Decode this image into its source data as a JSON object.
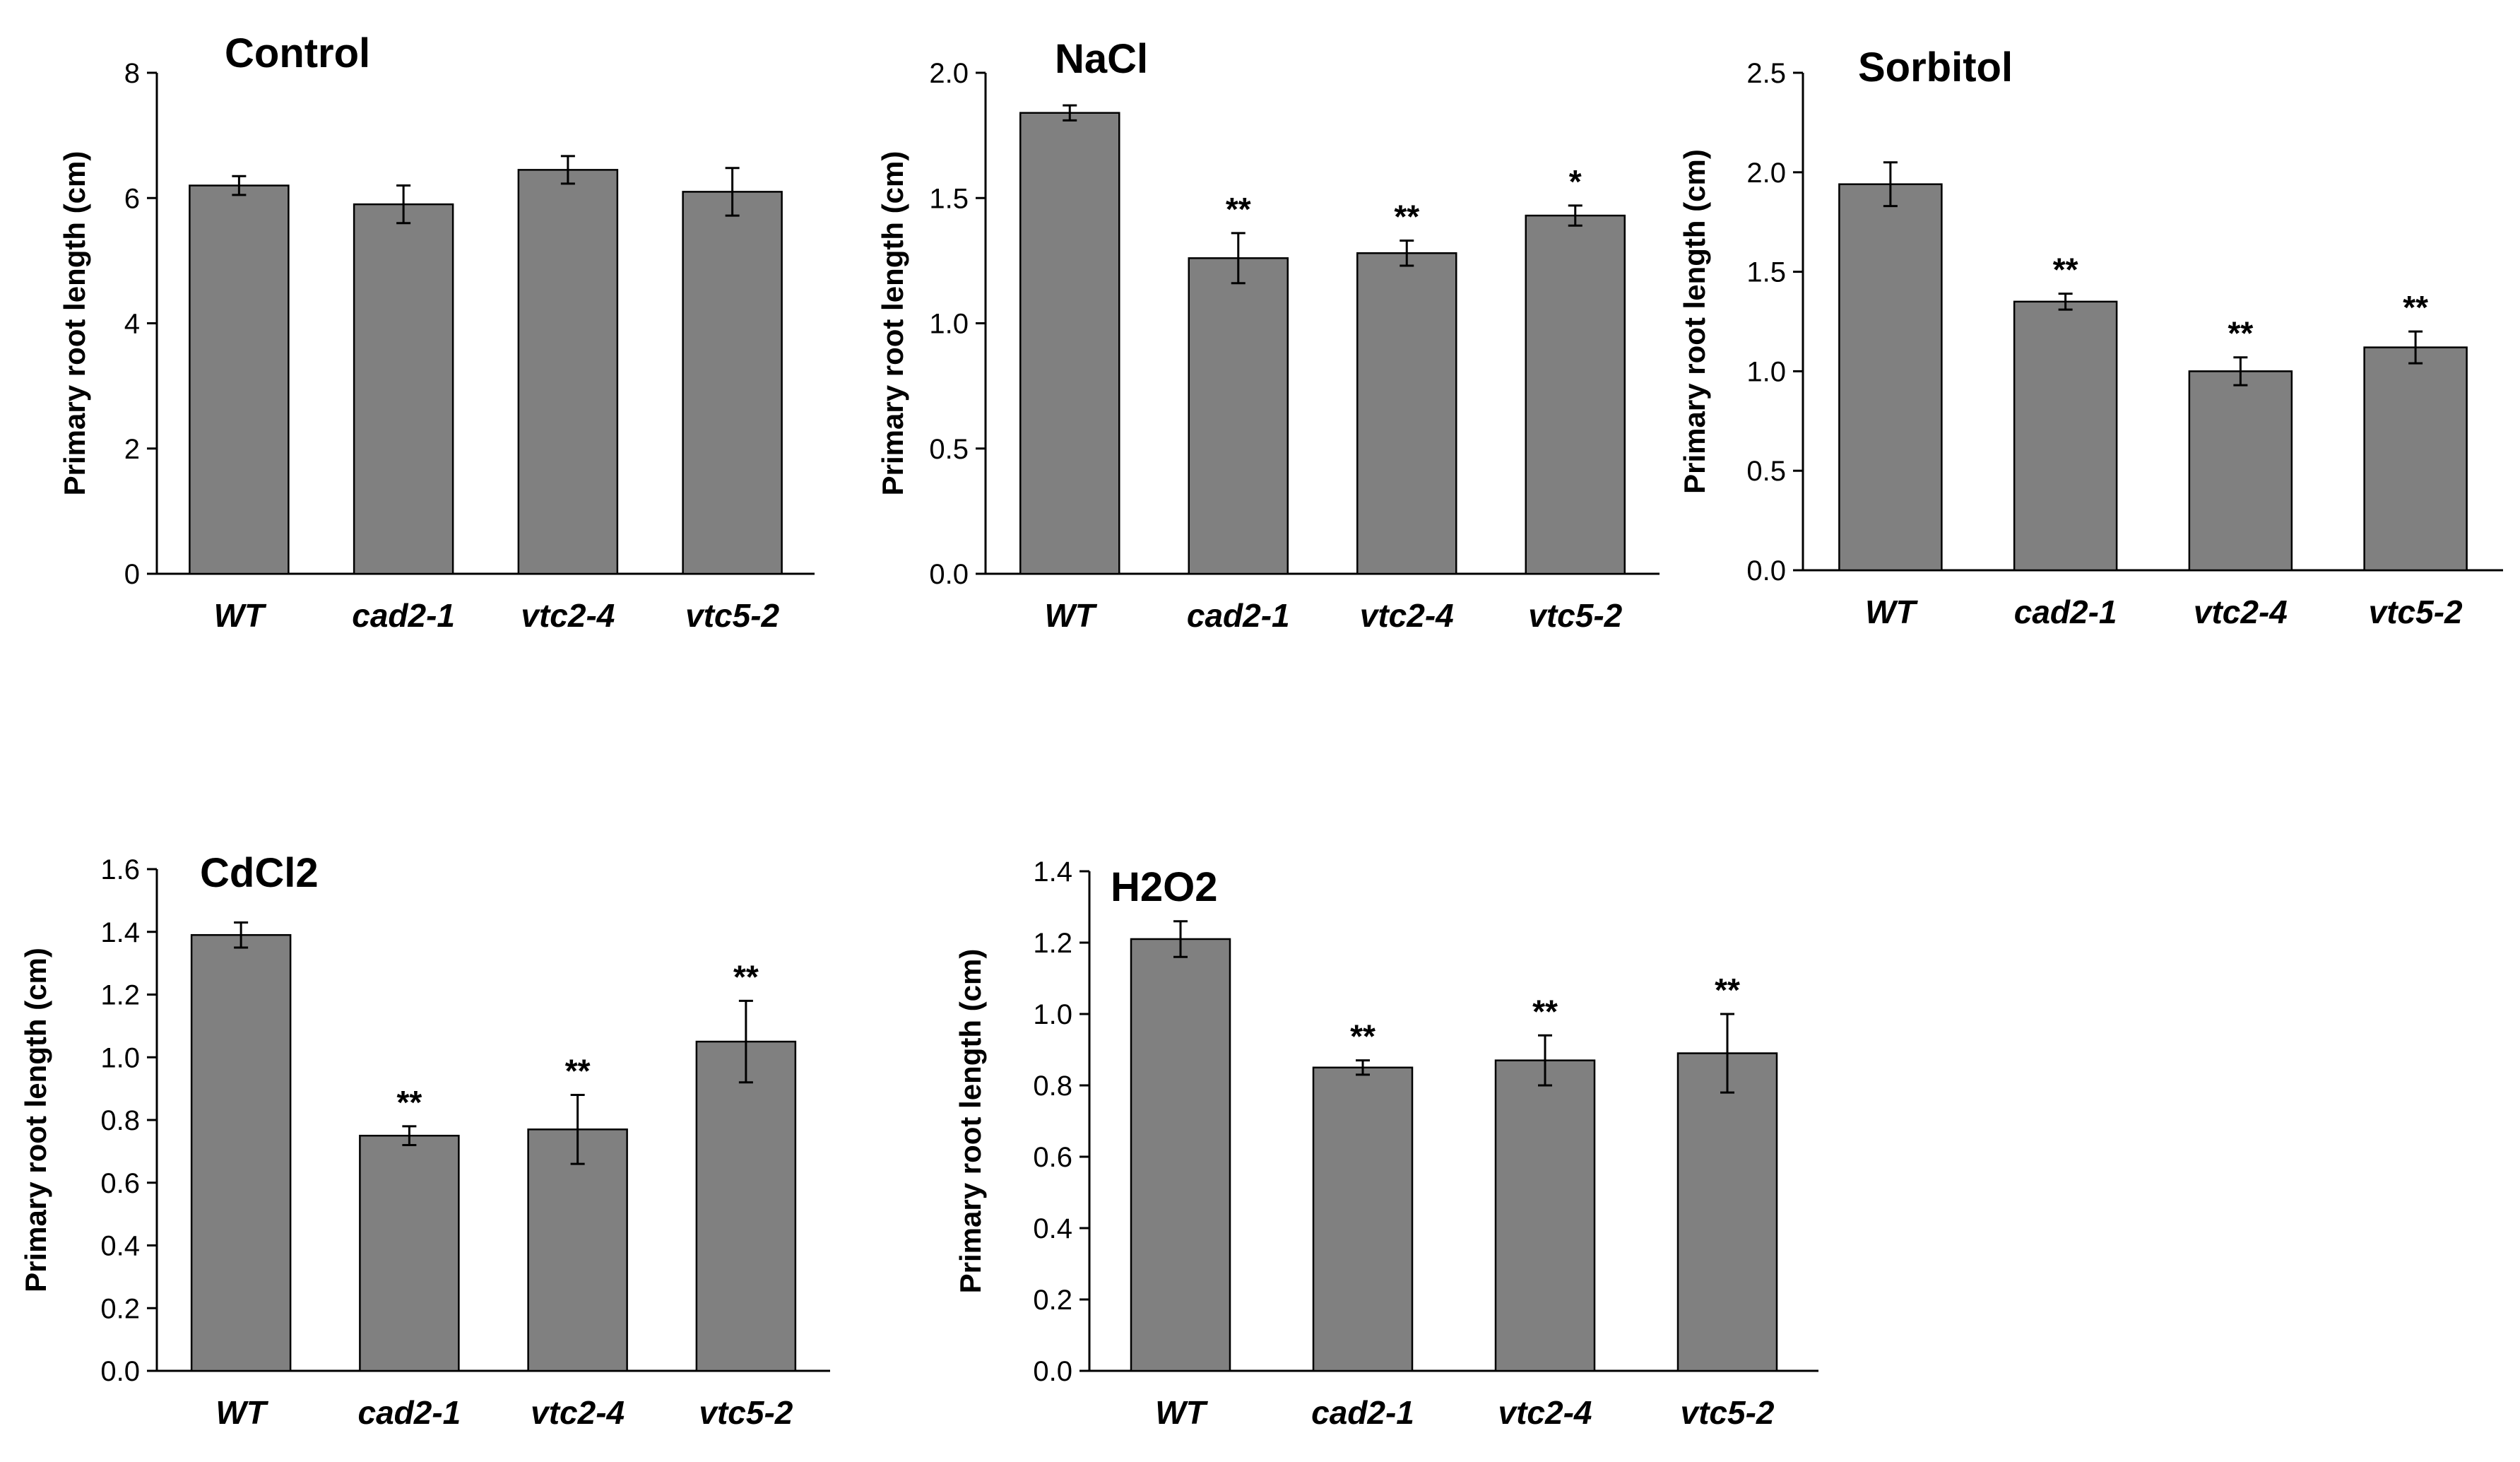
{
  "figure": {
    "bar_color": "#808080",
    "axis_color": "#000000"
  },
  "chart_data": [
    {
      "type": "bar",
      "title": "Control",
      "ylabel": "Primary root length (cm)",
      "xlabel": "",
      "categories": [
        "WT",
        "cad2-1",
        "vtc2-4",
        "vtc5-2"
      ],
      "values": [
        6.2,
        5.9,
        6.45,
        6.1
      ],
      "errors": [
        0.15,
        0.3,
        0.22,
        0.38
      ],
      "significance": [
        "",
        "",
        "",
        ""
      ],
      "ylim": [
        0,
        8
      ],
      "yticks": [
        0,
        2,
        4,
        6,
        8
      ],
      "ytick_labels": [
        "0",
        "2",
        "4",
        "6",
        "8"
      ]
    },
    {
      "type": "bar",
      "title": "NaCl",
      "ylabel": "Primary root length (cm)",
      "xlabel": "",
      "categories": [
        "WT",
        "cad2-1",
        "vtc2-4",
        "vtc5-2"
      ],
      "values": [
        1.84,
        1.26,
        1.28,
        1.43
      ],
      "errors": [
        0.03,
        0.1,
        0.05,
        0.04
      ],
      "significance": [
        "",
        "**",
        "**",
        "*"
      ],
      "ylim": [
        0,
        2.0
      ],
      "yticks": [
        0,
        0.5,
        1.0,
        1.5,
        2.0
      ],
      "ytick_labels": [
        "0.0",
        "0.5",
        "1.0",
        "1.5",
        "2.0"
      ]
    },
    {
      "type": "bar",
      "title": "Sorbitol",
      "ylabel": "Primary root length (cm)",
      "xlabel": "",
      "categories": [
        "WT",
        "cad2-1",
        "vtc2-4",
        "vtc5-2"
      ],
      "values": [
        1.94,
        1.35,
        1.0,
        1.12
      ],
      "errors": [
        0.11,
        0.04,
        0.07,
        0.08
      ],
      "significance": [
        "",
        "**",
        "**",
        "**"
      ],
      "ylim": [
        0,
        2.5
      ],
      "yticks": [
        0,
        0.5,
        1.0,
        1.5,
        2.0,
        2.5
      ],
      "ytick_labels": [
        "0.0",
        "0.5",
        "1.0",
        "1.5",
        "2.0",
        "2.5"
      ]
    },
    {
      "type": "bar",
      "title": "CdCl2",
      "ylabel": "Primary root length (cm)",
      "xlabel": "",
      "categories": [
        "WT",
        "cad2-1",
        "vtc2-4",
        "vtc5-2"
      ],
      "values": [
        1.39,
        0.75,
        0.77,
        1.05
      ],
      "errors": [
        0.04,
        0.03,
        0.11,
        0.13
      ],
      "significance": [
        "",
        "**",
        "**",
        "**"
      ],
      "ylim": [
        0,
        1.6
      ],
      "yticks": [
        0,
        0.2,
        0.4,
        0.6,
        0.8,
        1.0,
        1.2,
        1.4,
        1.6
      ],
      "ytick_labels": [
        "0.0",
        "0.2",
        "0.4",
        "0.6",
        "0.8",
        "1.0",
        "1.2",
        "1.4",
        "1.6"
      ]
    },
    {
      "type": "bar",
      "title": "H2O2",
      "ylabel": "Primary root length (cm)",
      "xlabel": "",
      "categories": [
        "WT",
        "cad2-1",
        "vtc2-4",
        "vtc5-2"
      ],
      "values": [
        1.21,
        0.85,
        0.87,
        0.89
      ],
      "errors": [
        0.05,
        0.02,
        0.07,
        0.11
      ],
      "significance": [
        "",
        "**",
        "**",
        "**"
      ],
      "ylim": [
        0,
        1.4
      ],
      "yticks": [
        0,
        0.2,
        0.4,
        0.6,
        0.8,
        1.0,
        1.2,
        1.4
      ],
      "ytick_labels": [
        "0.0",
        "0.2",
        "0.4",
        "0.6",
        "0.8",
        "1.0",
        "1.2",
        "1.4"
      ]
    }
  ]
}
